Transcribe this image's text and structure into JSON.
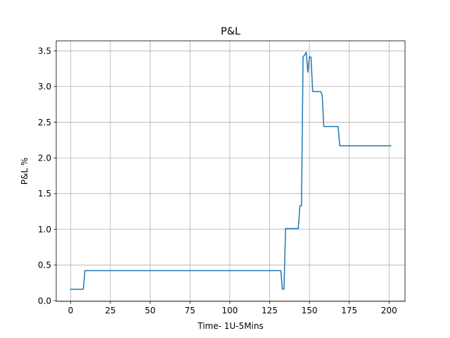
{
  "chart_data": {
    "type": "line",
    "title": "P&L",
    "xlabel": "Time- 1U-5Mins",
    "ylabel": "P&L %",
    "xlim": [
      -9,
      210
    ],
    "ylim": [
      -0.01,
      3.64
    ],
    "xticks": [
      0,
      25,
      50,
      75,
      100,
      125,
      150,
      175,
      200
    ],
    "yticks": [
      0.0,
      0.5,
      1.0,
      1.5,
      2.0,
      2.5,
      3.0,
      3.5
    ],
    "xtick_labels": [
      "0",
      "25",
      "50",
      "75",
      "100",
      "125",
      "150",
      "175",
      "200"
    ],
    "ytick_labels": [
      "0.0",
      "0.5",
      "1.0",
      "1.5",
      "2.0",
      "2.5",
      "3.0",
      "3.5"
    ],
    "grid": true,
    "series": [
      {
        "color": "#1f77b4",
        "x": [
          0,
          8,
          9,
          132,
          133,
          134,
          135,
          143,
          144,
          145,
          146,
          147,
          148,
          149,
          150,
          151,
          152,
          153,
          157,
          158,
          159,
          168,
          169,
          201
        ],
        "y": [
          0.16,
          0.16,
          0.42,
          0.42,
          0.16,
          0.16,
          1.01,
          1.01,
          1.33,
          1.33,
          3.42,
          3.44,
          3.48,
          3.2,
          3.42,
          3.41,
          2.93,
          2.93,
          2.93,
          2.88,
          2.44,
          2.44,
          2.17,
          2.17
        ]
      }
    ]
  }
}
